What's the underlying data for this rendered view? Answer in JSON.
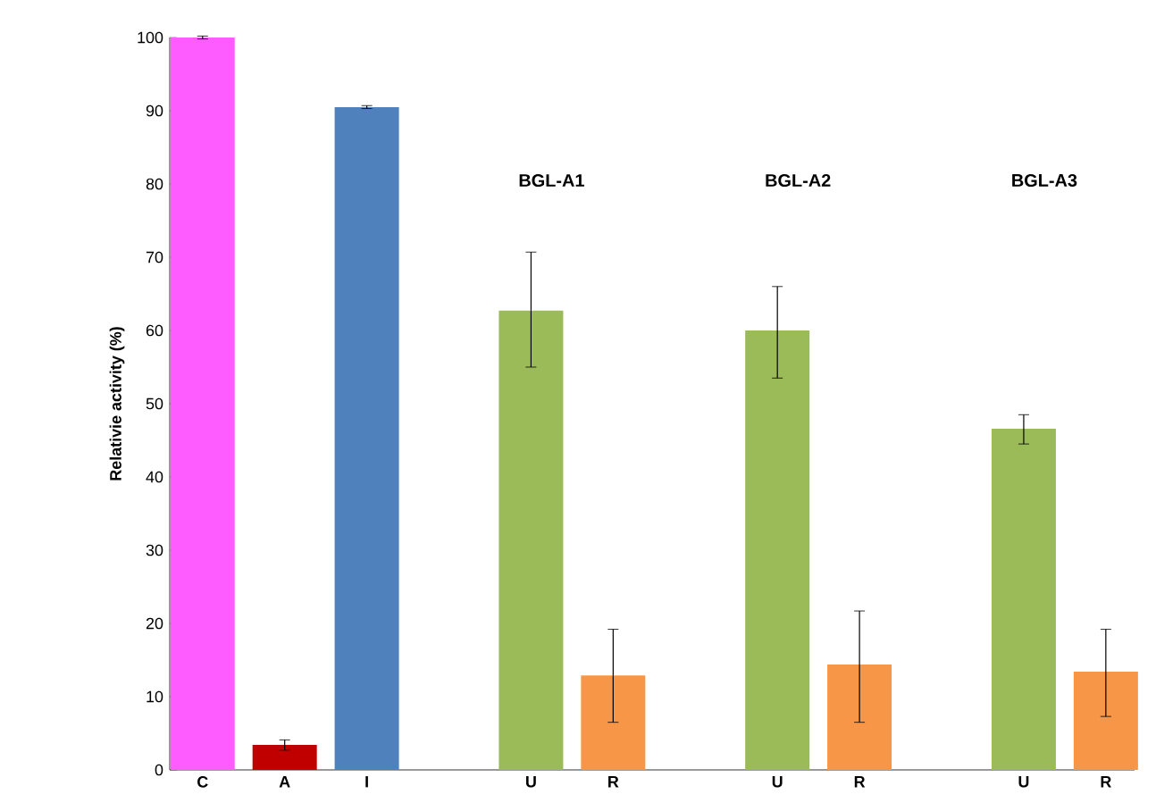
{
  "chart_data": {
    "type": "bar",
    "ylabel": "Relativie activity (%)",
    "categories": [
      "C",
      "A",
      "I",
      null,
      "U",
      "R",
      null,
      "U",
      "R",
      null,
      "U",
      "R"
    ],
    "values": [
      100,
      3.4,
      90.5,
      null,
      62.7,
      12.9,
      null,
      60,
      14.4,
      null,
      46.6,
      13.4
    ],
    "errors": [
      0.2,
      [
        2.7,
        4.1
      ],
      0.2,
      null,
      [
        55,
        70.7
      ],
      [
        6.5,
        19.2
      ],
      null,
      [
        53.5,
        66
      ],
      [
        6.5,
        21.7
      ],
      null,
      [
        44.5,
        48.5
      ],
      [
        7.3,
        19.2
      ]
    ],
    "colors": [
      "#ff5cff",
      "#c00000",
      "#4f81bd",
      null,
      "#9bbb59",
      "#f79646",
      null,
      "#9bbb59",
      "#f79646",
      null,
      "#9bbb59",
      "#f79646"
    ],
    "annotations": [
      "BGL-A1",
      "BGL-A2",
      "BGL-A3"
    ],
    "ylim": [
      0,
      100
    ],
    "yticks": [
      0,
      10,
      20,
      30,
      40,
      50,
      60,
      70,
      80,
      90,
      100
    ],
    "grid": false
  }
}
